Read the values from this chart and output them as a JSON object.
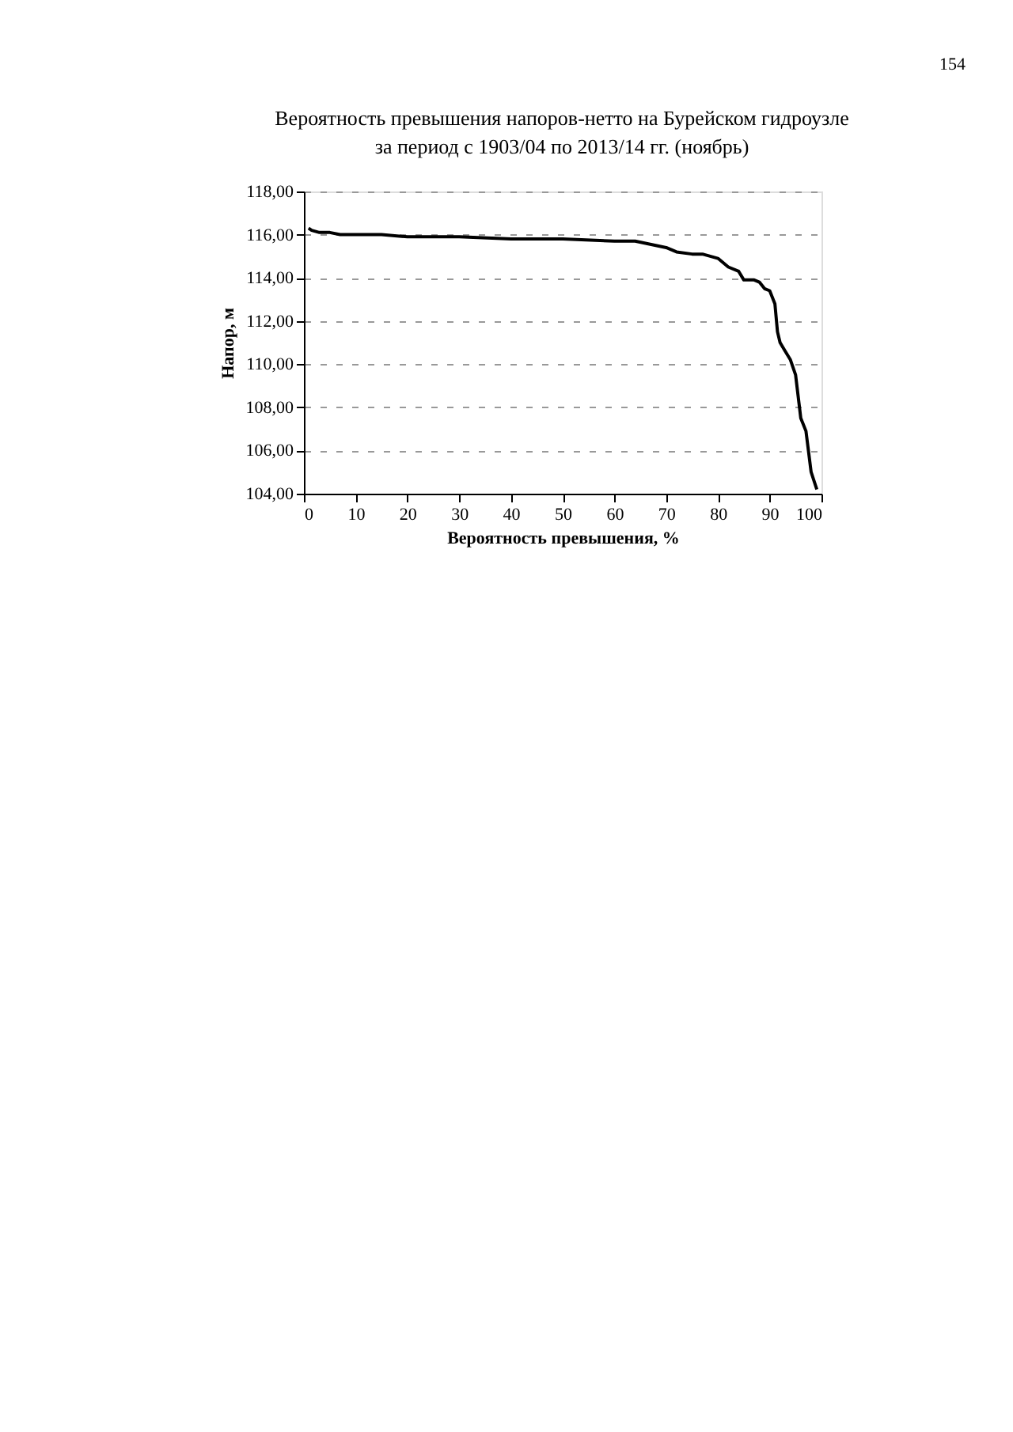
{
  "chart_data": {
    "type": "line",
    "title": [
      "Вероятность превышения напоров-нетто на Бурейском гидроузле",
      "за период с 1903/04 по 2013/14 гг. (ноябрь)"
    ],
    "xlabel": "Вероятность превышения, %",
    "ylabel": "Напор, м",
    "annotations": [
      "154"
    ],
    "x": [
      0.9,
      1.5,
      3,
      5,
      7,
      10,
      15,
      20,
      30,
      40,
      50,
      60,
      64,
      66,
      68,
      70,
      72,
      75,
      77,
      80,
      82,
      84,
      85,
      87,
      88,
      89,
      90,
      91,
      91.5,
      92,
      93,
      94,
      95,
      96,
      97,
      98,
      99.1
    ],
    "series": [
      {
        "color": "#000000",
        "values": [
          116.3,
          116.2,
          116.1,
          116.1,
          116.0,
          116.0,
          116.0,
          115.9,
          115.9,
          115.8,
          115.8,
          115.7,
          115.7,
          115.6,
          115.5,
          115.4,
          115.2,
          115.1,
          115.1,
          114.9,
          114.5,
          114.3,
          113.9,
          113.9,
          113.8,
          113.5,
          113.4,
          112.8,
          111.5,
          111.0,
          110.6,
          110.2,
          109.5,
          107.5,
          106.9,
          105.0,
          104.2
        ]
      }
    ],
    "xlim": [
      0,
      100
    ],
    "xticks": [
      0,
      10,
      20,
      30,
      40,
      50,
      60,
      70,
      80,
      90,
      100
    ],
    "ylim": [
      104,
      118
    ],
    "yticks": [
      {
        "value": 104,
        "label": "104,00"
      },
      {
        "value": 106,
        "label": "106,00"
      },
      {
        "value": 108,
        "label": "108,00"
      },
      {
        "value": 110,
        "label": "110,00"
      },
      {
        "value": 112,
        "label": "112,00"
      },
      {
        "value": 114,
        "label": "114,00"
      },
      {
        "value": 116,
        "label": "116,00"
      },
      {
        "value": 118,
        "label": "118,00"
      }
    ],
    "grid": "y",
    "marker": "none",
    "line_style": "solid"
  }
}
